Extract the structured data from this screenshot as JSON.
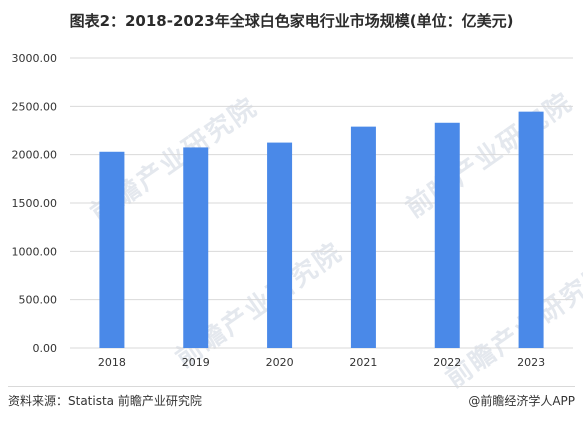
{
  "title": "图表2：2018-2023年全球白色家电行业市场规模(单位：亿美元)",
  "footer": {
    "source": "资料来源：Statista 前瞻产业研究院",
    "credit": "@前瞻经济学人APP"
  },
  "watermark": {
    "text": "前瞻产业研究院"
  },
  "colors": {
    "bar": "#4a89e8",
    "grid": "#d9d9d9",
    "axis_text": "#333333",
    "watermark": "#e4e8ee"
  },
  "chart_data": {
    "type": "bar",
    "title": "图表2：2018-2023年全球白色家电行业市场规模(单位：亿美元)",
    "xlabel": "",
    "ylabel": "",
    "categories": [
      "2018",
      "2019",
      "2020",
      "2021",
      "2022",
      "2023"
    ],
    "values": [
      2030,
      2075,
      2125,
      2290,
      2330,
      2445
    ],
    "ylim": [
      0,
      3000
    ],
    "yticks": [
      "0.00",
      "500.00",
      "1000.00",
      "1500.00",
      "2000.00",
      "2500.00",
      "3000.00"
    ],
    "grid": true,
    "legend": "none"
  }
}
